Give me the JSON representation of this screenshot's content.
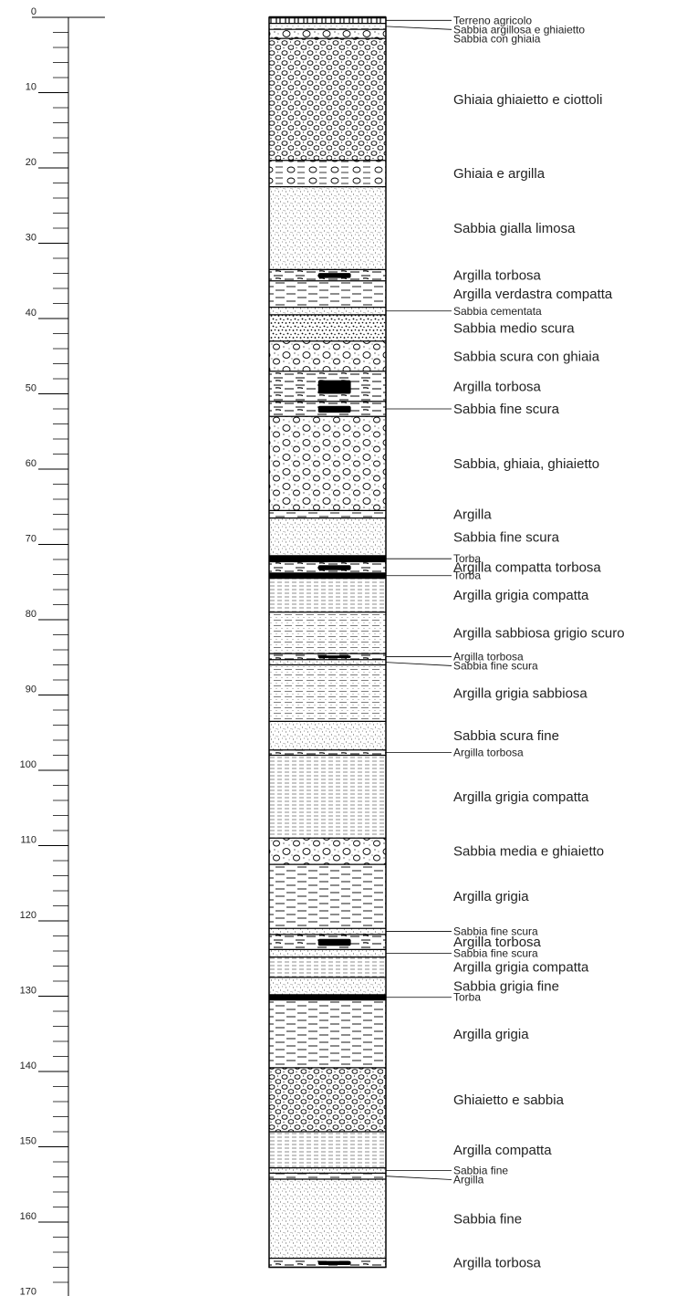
{
  "scale": {
    "min_depth": 0,
    "max_depth": 170,
    "major_interval": 10,
    "minor_interval": 2,
    "labels": [
      "0",
      "10",
      "20",
      "30",
      "40",
      "50",
      "60",
      "70",
      "80",
      "90",
      "100",
      "110",
      "120",
      "130",
      "140",
      "150",
      "160",
      "170"
    ]
  },
  "colors": {
    "ink": "#000000",
    "label": "#222222",
    "background": "#ffffff"
  },
  "layers": [
    {
      "top": 0,
      "bottom": 0.8,
      "pattern": "soil",
      "label": "Terreno agricolo",
      "label_style": "small-leader"
    },
    {
      "top": 0.8,
      "bottom": 1.6,
      "pattern": "clay-sand",
      "label": "Sabbia argillosa e ghiaietto",
      "label_style": "small-leader"
    },
    {
      "top": 1.6,
      "bottom": 2.8,
      "pattern": "sand-gravel",
      "label": "Sabbia con ghiaia",
      "label_style": "small"
    },
    {
      "top": 2.8,
      "bottom": 19.0,
      "pattern": "gravel",
      "label": "Ghiaia ghiaietto e ciottoli",
      "label_style": "normal"
    },
    {
      "top": 19.0,
      "bottom": 22.5,
      "pattern": "gravel-clay",
      "label": "Ghiaia e argilla",
      "label_style": "normal"
    },
    {
      "top": 22.5,
      "bottom": 33.5,
      "pattern": "sand-fine",
      "label": "Sabbia gialla limosa",
      "label_style": "normal"
    },
    {
      "top": 33.5,
      "bottom": 35.0,
      "pattern": "peat-clay",
      "label": "Argilla torbosa",
      "label_style": "normal"
    },
    {
      "top": 35.0,
      "bottom": 38.5,
      "pattern": "clay",
      "label": "Argilla verdastra compatta",
      "label_style": "normal"
    },
    {
      "top": 38.5,
      "bottom": 39.5,
      "pattern": "sand-fine",
      "label": "Sabbia cementata",
      "label_style": "small-leader"
    },
    {
      "top": 39.5,
      "bottom": 43.0,
      "pattern": "sand-medium",
      "label": "Sabbia medio scura",
      "label_style": "normal"
    },
    {
      "top": 43.0,
      "bottom": 47.0,
      "pattern": "sand-gravel",
      "label": "Sabbia scura con ghiaia",
      "label_style": "normal"
    },
    {
      "top": 47.0,
      "bottom": 51.0,
      "pattern": "peat-clay",
      "label": "Argilla torbosa",
      "label_style": "normal"
    },
    {
      "top": 51.0,
      "bottom": 53.0,
      "pattern": "peat-clay",
      "label": "Sabbia fine scura",
      "label_style": "leader"
    },
    {
      "top": 53.0,
      "bottom": 65.5,
      "pattern": "sand-gravel",
      "label": "Sabbia, ghiaia, ghiaietto",
      "label_style": "normal"
    },
    {
      "top": 65.5,
      "bottom": 66.5,
      "pattern": "clay",
      "label": "Argilla",
      "label_style": "normal"
    },
    {
      "top": 66.5,
      "bottom": 71.5,
      "pattern": "sand-fine",
      "label": "Sabbia fine scura",
      "label_style": "normal"
    },
    {
      "top": 71.5,
      "bottom": 72.3,
      "pattern": "peat",
      "label": "Torba",
      "label_style": "small-leader"
    },
    {
      "top": 72.3,
      "bottom": 73.8,
      "pattern": "peat-clay",
      "label": "Argilla compatta torbosa",
      "label_style": "normal"
    },
    {
      "top": 73.8,
      "bottom": 74.5,
      "pattern": "peat",
      "label": "Torba",
      "label_style": "small-leader"
    },
    {
      "top": 74.5,
      "bottom": 79.0,
      "pattern": "clay-compact",
      "label": "Argilla grigia compatta",
      "label_style": "normal"
    },
    {
      "top": 79.0,
      "bottom": 84.5,
      "pattern": "clay-sand",
      "label": "Argilla sabbiosa grigio scuro",
      "label_style": "normal"
    },
    {
      "top": 84.5,
      "bottom": 85.3,
      "pattern": "peat-clay",
      "label": "Argilla torbosa",
      "label_style": "small-leader"
    },
    {
      "top": 85.3,
      "bottom": 86.0,
      "pattern": "sand-fine",
      "label": "Sabbia fine scura",
      "label_style": "small-leader"
    },
    {
      "top": 86.0,
      "bottom": 93.5,
      "pattern": "clay-sand",
      "label": "Argilla grigia sabbiosa",
      "label_style": "normal"
    },
    {
      "top": 93.5,
      "bottom": 97.3,
      "pattern": "sand-fine",
      "label": "Sabbia scura fine",
      "label_style": "normal"
    },
    {
      "top": 97.3,
      "bottom": 98.0,
      "pattern": "peat-clay",
      "label": "Argilla torbosa",
      "label_style": "small-leader"
    },
    {
      "top": 98.0,
      "bottom": 109.0,
      "pattern": "clay-compact",
      "label": "Argilla grigia compatta",
      "label_style": "normal"
    },
    {
      "top": 109.0,
      "bottom": 112.5,
      "pattern": "sand-gravel",
      "label": "Sabbia media e ghiaietto",
      "label_style": "normal"
    },
    {
      "top": 112.5,
      "bottom": 121.0,
      "pattern": "clay",
      "label": "Argilla grigia",
      "label_style": "normal"
    },
    {
      "top": 121.0,
      "bottom": 121.8,
      "pattern": "sand-fine",
      "label": "Sabbia fine scura",
      "label_style": "small-leader"
    },
    {
      "top": 121.8,
      "bottom": 123.8,
      "pattern": "peat-clay",
      "label": "Argilla torbosa",
      "label_style": "normal"
    },
    {
      "top": 123.8,
      "bottom": 124.8,
      "pattern": "sand-fine",
      "label": "Sabbia fine scura",
      "label_style": "small-leader"
    },
    {
      "top": 124.8,
      "bottom": 127.5,
      "pattern": "clay-compact",
      "label": "Argilla grigia compatta",
      "label_style": "normal"
    },
    {
      "top": 127.5,
      "bottom": 129.8,
      "pattern": "sand-fine",
      "label": "Sabbia grigia fine",
      "label_style": "normal"
    },
    {
      "top": 129.8,
      "bottom": 130.5,
      "pattern": "peat",
      "label": "Torba",
      "label_style": "small-leader"
    },
    {
      "top": 130.5,
      "bottom": 139.5,
      "pattern": "clay",
      "label": "Argilla grigia",
      "label_style": "normal"
    },
    {
      "top": 139.5,
      "bottom": 148.0,
      "pattern": "gravel",
      "label": "Ghiaietto e sabbia",
      "label_style": "normal"
    },
    {
      "top": 148.0,
      "bottom": 152.8,
      "pattern": "clay-compact",
      "label": "Argilla compatta",
      "label_style": "normal"
    },
    {
      "top": 152.8,
      "bottom": 153.5,
      "pattern": "sand-fine",
      "label": "Sabbia fine",
      "label_style": "small-leader"
    },
    {
      "top": 153.5,
      "bottom": 154.3,
      "pattern": "clay",
      "label": "Argilla",
      "label_style": "small-leader"
    },
    {
      "top": 154.3,
      "bottom": 164.8,
      "pattern": "sand-fine",
      "label": "Sabbia fine",
      "label_style": "normal"
    },
    {
      "top": 164.8,
      "bottom": 166.0,
      "pattern": "peat-clay",
      "label": "Argilla torbosa",
      "label_style": "normal"
    }
  ]
}
